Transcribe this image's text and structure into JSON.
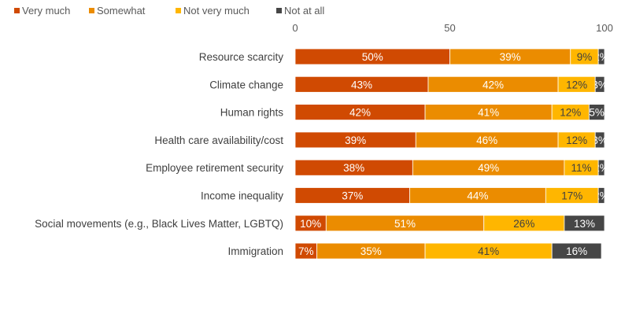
{
  "chart_data": {
    "type": "bar",
    "orientation": "horizontal",
    "stacked": true,
    "title": "",
    "xlabel": "",
    "ylabel": "",
    "xlim": [
      0,
      100
    ],
    "xticks": [
      "0",
      "50",
      "100"
    ],
    "grid": false,
    "legend_position": "top-left",
    "categories": [
      "Resource scarcity",
      "Climate change",
      "Human rights",
      "Health care availability/cost",
      "Employee retirement security",
      "Income inequality",
      "Social movements (e.g., Black Lives Matter, LGBTQ)",
      "Immigration"
    ],
    "series": [
      {
        "name": "Very much",
        "color": "#D04A02",
        "values": [
          50,
          43,
          42,
          39,
          38,
          37,
          10,
          7
        ]
      },
      {
        "name": "Somewhat",
        "color": "#EB8C00",
        "values": [
          39,
          42,
          41,
          46,
          49,
          44,
          51,
          35
        ]
      },
      {
        "name": "Not very much",
        "color": "#FFB600",
        "values": [
          9,
          12,
          12,
          12,
          11,
          17,
          26,
          41
        ]
      },
      {
        "name": "Not at all",
        "color": "#464646",
        "values": [
          2,
          3,
          5,
          3,
          2,
          2,
          13,
          16
        ]
      }
    ],
    "label_format": "{v}%"
  }
}
